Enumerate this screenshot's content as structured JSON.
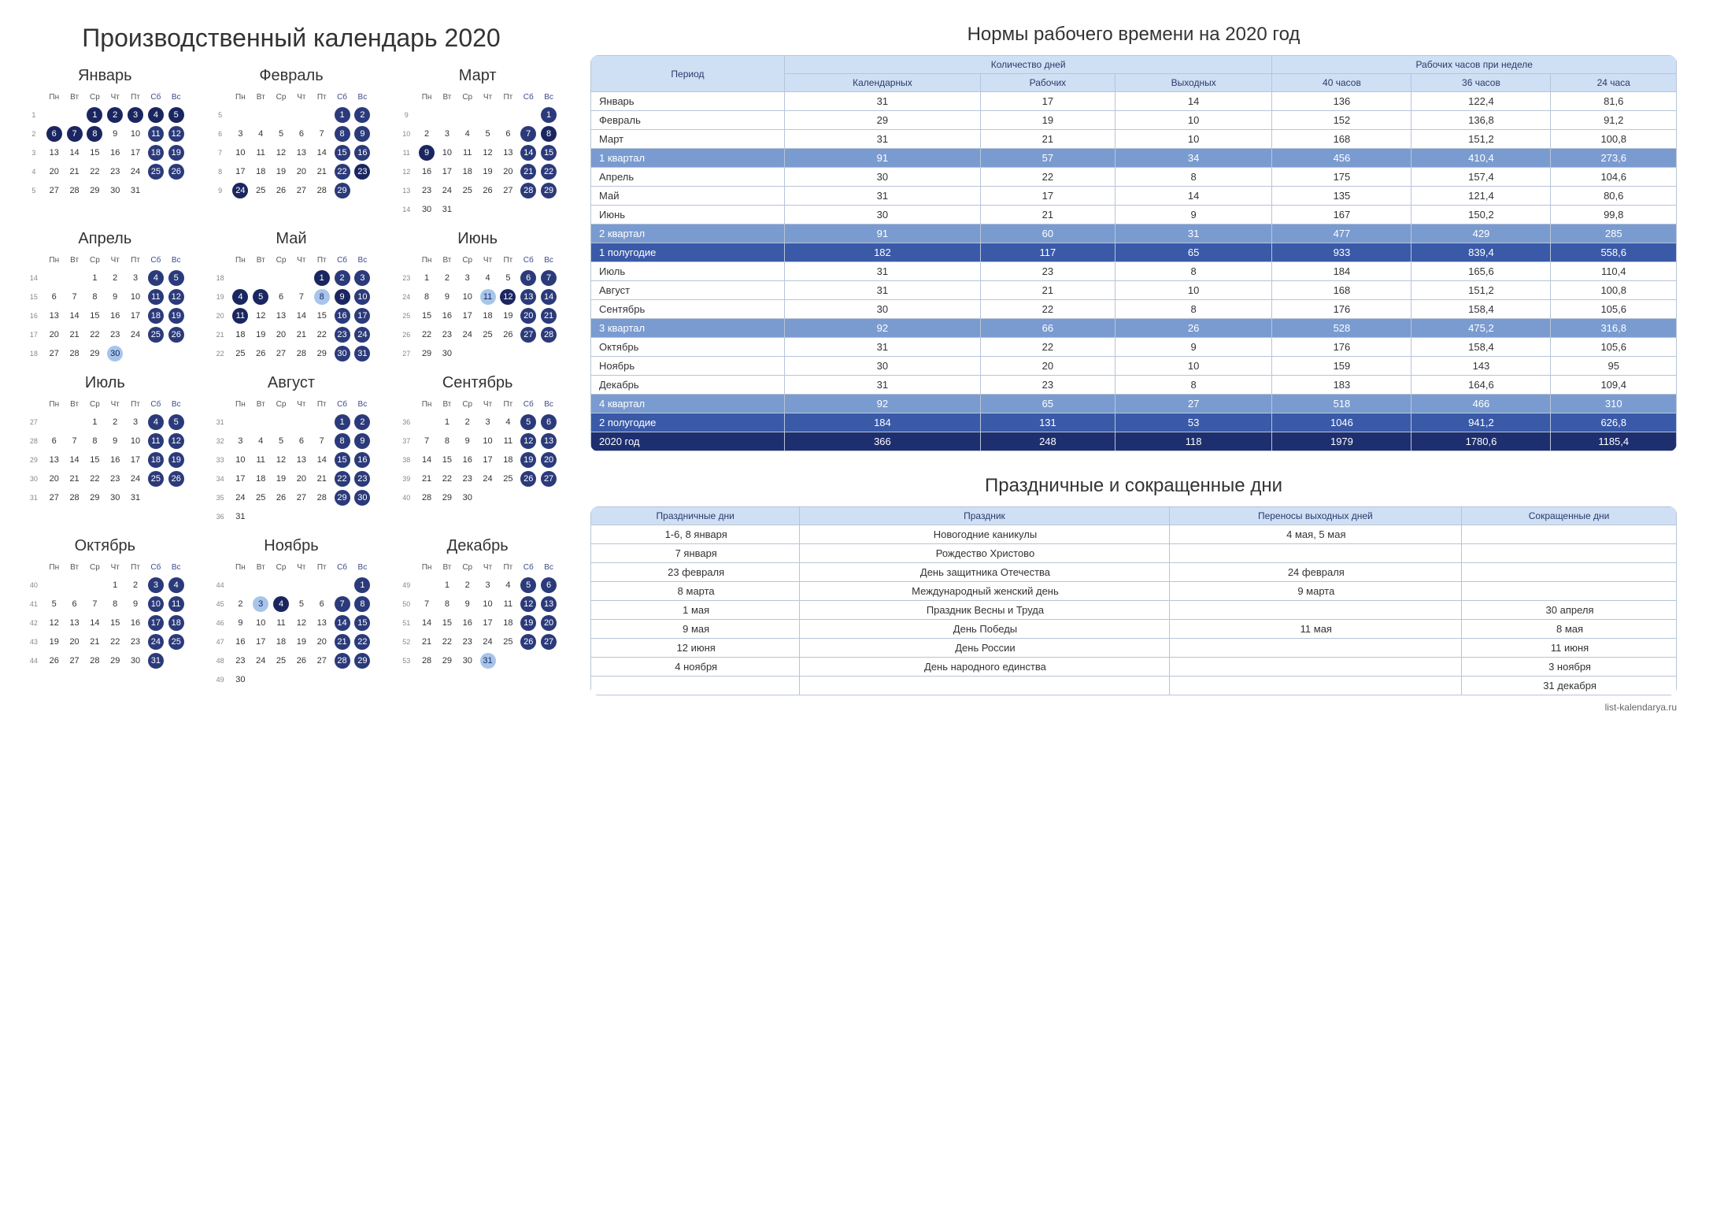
{
  "mainTitle": "Производственный календарь 2020",
  "weekdays": [
    "Пн",
    "Вт",
    "Ср",
    "Чт",
    "Пт",
    "Сб",
    "Вс"
  ],
  "colors": {
    "holiday": "#1a2660",
    "weekend": "#2b3a7a",
    "pre": "#a7c5ea",
    "headerBg": "#cfe0f5",
    "rowQ": "#7a9bd0",
    "rowH": "#3a5aa8",
    "rowY": "#1e2f6f",
    "border": "#b8c4d8"
  },
  "months": [
    {
      "name": "Январь",
      "startWeek": 1,
      "firstDow": 2,
      "days": 31,
      "holidays": [
        1,
        2,
        3,
        4,
        5,
        6,
        7,
        8
      ],
      "pre": []
    },
    {
      "name": "Февраль",
      "startWeek": 5,
      "firstDow": 5,
      "days": 29,
      "holidays": [
        23,
        24
      ],
      "pre": []
    },
    {
      "name": "Март",
      "startWeek": 9,
      "firstDow": 6,
      "days": 31,
      "holidays": [
        8,
        9
      ],
      "pre": []
    },
    {
      "name": "Апрель",
      "startWeek": 14,
      "firstDow": 2,
      "days": 30,
      "holidays": [],
      "pre": [
        30
      ]
    },
    {
      "name": "Май",
      "startWeek": 18,
      "firstDow": 4,
      "days": 31,
      "holidays": [
        1,
        4,
        5,
        9,
        11
      ],
      "pre": [
        8
      ]
    },
    {
      "name": "Июнь",
      "startWeek": 23,
      "firstDow": 0,
      "days": 30,
      "holidays": [
        12
      ],
      "pre": [
        11
      ]
    },
    {
      "name": "Июль",
      "startWeek": 27,
      "firstDow": 2,
      "days": 31,
      "holidays": [],
      "pre": []
    },
    {
      "name": "Август",
      "startWeek": 31,
      "firstDow": 5,
      "days": 31,
      "holidays": [],
      "pre": []
    },
    {
      "name": "Сентябрь",
      "startWeek": 36,
      "firstDow": 1,
      "days": 30,
      "holidays": [],
      "pre": []
    },
    {
      "name": "Октябрь",
      "startWeek": 40,
      "firstDow": 3,
      "days": 31,
      "holidays": [],
      "pre": []
    },
    {
      "name": "Ноябрь",
      "startWeek": 44,
      "firstDow": 6,
      "days": 30,
      "holidays": [
        4
      ],
      "pre": [
        3
      ]
    },
    {
      "name": "Декабрь",
      "startWeek": 49,
      "firstDow": 1,
      "days": 31,
      "holidays": [],
      "pre": [
        31
      ]
    }
  ],
  "normsTitle": "Нормы рабочего времени на 2020 год",
  "normsHeaders": {
    "period": "Период",
    "daysGroup": "Количество дней",
    "hoursGroup": "Рабочих часов при неделе",
    "cal": "Календарных",
    "work": "Рабочих",
    "off": "Выходных",
    "h40": "40 часов",
    "h36": "36 часов",
    "h24": "24 часа"
  },
  "normsRows": [
    {
      "label": "Январь",
      "cal": "31",
      "work": "17",
      "off": "14",
      "h40": "136",
      "h36": "122,4",
      "h24": "81,6",
      "cls": ""
    },
    {
      "label": "Февраль",
      "cal": "29",
      "work": "19",
      "off": "10",
      "h40": "152",
      "h36": "136,8",
      "h24": "91,2",
      "cls": ""
    },
    {
      "label": "Март",
      "cal": "31",
      "work": "21",
      "off": "10",
      "h40": "168",
      "h36": "151,2",
      "h24": "100,8",
      "cls": ""
    },
    {
      "label": "1 квартал",
      "cal": "91",
      "work": "57",
      "off": "34",
      "h40": "456",
      "h36": "410,4",
      "h24": "273,6",
      "cls": "row-q"
    },
    {
      "label": "Апрель",
      "cal": "30",
      "work": "22",
      "off": "8",
      "h40": "175",
      "h36": "157,4",
      "h24": "104,6",
      "cls": ""
    },
    {
      "label": "Май",
      "cal": "31",
      "work": "17",
      "off": "14",
      "h40": "135",
      "h36": "121,4",
      "h24": "80,6",
      "cls": ""
    },
    {
      "label": "Июнь",
      "cal": "30",
      "work": "21",
      "off": "9",
      "h40": "167",
      "h36": "150,2",
      "h24": "99,8",
      "cls": ""
    },
    {
      "label": "2 квартал",
      "cal": "91",
      "work": "60",
      "off": "31",
      "h40": "477",
      "h36": "429",
      "h24": "285",
      "cls": "row-q"
    },
    {
      "label": "1 полугодие",
      "cal": "182",
      "work": "117",
      "off": "65",
      "h40": "933",
      "h36": "839,4",
      "h24": "558,6",
      "cls": "row-h"
    },
    {
      "label": "Июль",
      "cal": "31",
      "work": "23",
      "off": "8",
      "h40": "184",
      "h36": "165,6",
      "h24": "110,4",
      "cls": ""
    },
    {
      "label": "Август",
      "cal": "31",
      "work": "21",
      "off": "10",
      "h40": "168",
      "h36": "151,2",
      "h24": "100,8",
      "cls": ""
    },
    {
      "label": "Сентябрь",
      "cal": "30",
      "work": "22",
      "off": "8",
      "h40": "176",
      "h36": "158,4",
      "h24": "105,6",
      "cls": ""
    },
    {
      "label": "3 квартал",
      "cal": "92",
      "work": "66",
      "off": "26",
      "h40": "528",
      "h36": "475,2",
      "h24": "316,8",
      "cls": "row-q"
    },
    {
      "label": "Октябрь",
      "cal": "31",
      "work": "22",
      "off": "9",
      "h40": "176",
      "h36": "158,4",
      "h24": "105,6",
      "cls": ""
    },
    {
      "label": "Ноябрь",
      "cal": "30",
      "work": "20",
      "off": "10",
      "h40": "159",
      "h36": "143",
      "h24": "95",
      "cls": ""
    },
    {
      "label": "Декабрь",
      "cal": "31",
      "work": "23",
      "off": "8",
      "h40": "183",
      "h36": "164,6",
      "h24": "109,4",
      "cls": ""
    },
    {
      "label": "4 квартал",
      "cal": "92",
      "work": "65",
      "off": "27",
      "h40": "518",
      "h36": "466",
      "h24": "310",
      "cls": "row-q"
    },
    {
      "label": "2 полугодие",
      "cal": "184",
      "work": "131",
      "off": "53",
      "h40": "1046",
      "h36": "941,2",
      "h24": "626,8",
      "cls": "row-h"
    },
    {
      "label": "2020 год",
      "cal": "366",
      "work": "248",
      "off": "118",
      "h40": "1979",
      "h36": "1780,6",
      "h24": "1185,4",
      "cls": "row-y"
    }
  ],
  "holidaysTitle": "Праздничные и сокращенные дни",
  "holidaysHeaders": {
    "hdays": "Праздничные дни",
    "name": "Праздник",
    "moves": "Переносы выходных дней",
    "short": "Сокращенные дни"
  },
  "holidaysRows": [
    {
      "d": "1-6, 8 января",
      "n": "Новогодние каникулы",
      "m": "4 мая, 5 мая",
      "s": ""
    },
    {
      "d": "7 января",
      "n": "Рождество Христово",
      "m": "",
      "s": ""
    },
    {
      "d": "23 февраля",
      "n": "День защитника Отечества",
      "m": "24 февраля",
      "s": ""
    },
    {
      "d": "8 марта",
      "n": "Международный женский день",
      "m": "9 марта",
      "s": ""
    },
    {
      "d": "1 мая",
      "n": "Праздник Весны и Труда",
      "m": "",
      "s": "30 апреля"
    },
    {
      "d": "9 мая",
      "n": "День Победы",
      "m": "11 мая",
      "s": "8 мая"
    },
    {
      "d": "12 июня",
      "n": "День России",
      "m": "",
      "s": "11 июня"
    },
    {
      "d": "4 ноября",
      "n": "День народного единства",
      "m": "",
      "s": "3 ноября"
    },
    {
      "d": "",
      "n": "",
      "m": "",
      "s": "31 декабря"
    }
  ],
  "footerLink": "list-kalendarya.ru"
}
